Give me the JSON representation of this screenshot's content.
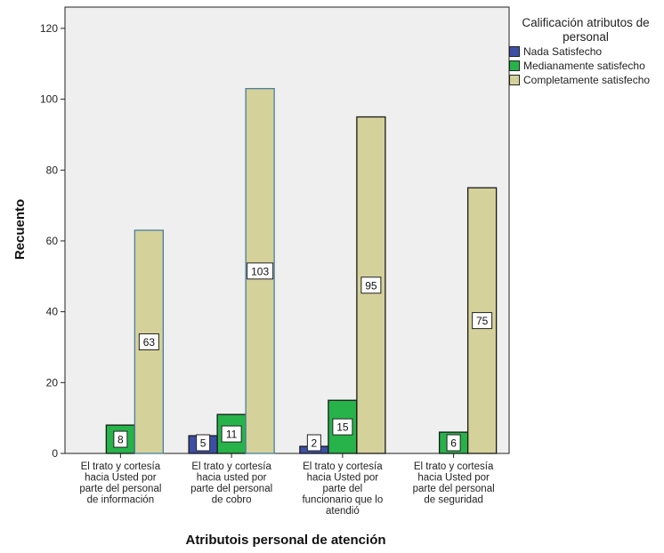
{
  "chart_data": {
    "type": "bar",
    "xlabel": "Atributois personal de atención",
    "ylabel": "Recuento",
    "ylim": [
      0,
      126
    ],
    "yticks": [
      0,
      20,
      40,
      60,
      80,
      100,
      120
    ],
    "grid": false,
    "legend_position": "right",
    "legend_title": "Calificación atributos de personal",
    "categories": [
      [
        "El trato y cortesía",
        "hacia Usted por",
        "parte del personal",
        "de información"
      ],
      [
        "El trato y cortesía",
        "hacia usted por",
        "parte del personal",
        "de cobro"
      ],
      [
        "El trato y cortesía",
        "hacia Usted por",
        "parte del",
        "funcionario que lo",
        "atendió"
      ],
      [
        "El trato y cortesía",
        "hacia Usted por",
        "parte del personal",
        "de seguridad"
      ]
    ],
    "series": [
      {
        "name": "Nada Satisfecho",
        "color": "#3d4fa5",
        "values": [
          null,
          5,
          2,
          null
        ]
      },
      {
        "name": "Medianamente satisfecho",
        "color": "#27b34a",
        "values": [
          8,
          11,
          15,
          6
        ]
      },
      {
        "name": "Completamente satisfecho",
        "color": "#d5d19a",
        "values": [
          63,
          103,
          95,
          75
        ]
      }
    ]
  }
}
